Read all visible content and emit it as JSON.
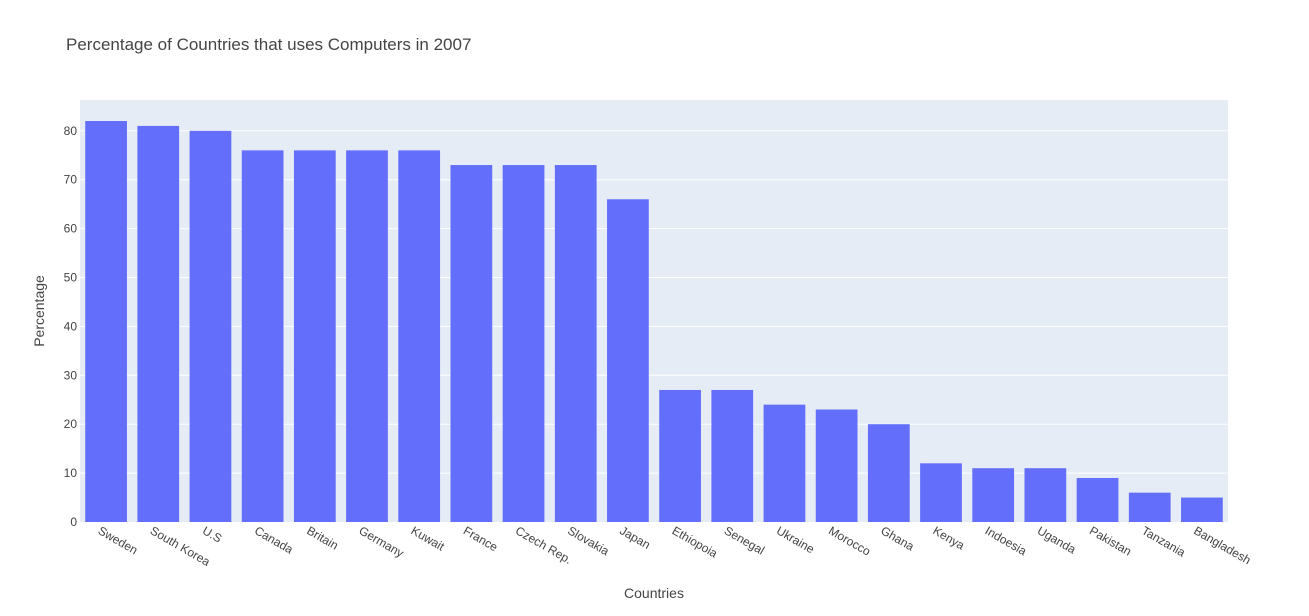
{
  "chart_data": {
    "type": "bar",
    "title": "Percentage of Countries that uses Computers in 2007",
    "xlabel": "Countries",
    "ylabel": "Percentage",
    "categories": [
      "Sweden",
      "South Korea",
      "U.S",
      "Canada",
      "Britain",
      "Germany",
      "Kuwait",
      "France",
      "Czech Rep.",
      "Slovakia",
      "Japan",
      "Ethiopoia",
      "Senegal",
      "Ukraine",
      "Morocco",
      "Ghana",
      "Kenya",
      "Indoesia",
      "Uganda",
      "Pakistan",
      "Tanzania",
      "Bangladesh"
    ],
    "values": [
      82,
      81,
      80,
      76,
      76,
      76,
      76,
      73,
      73,
      73,
      66,
      27,
      27,
      24,
      23,
      20,
      12,
      11,
      11,
      9,
      6,
      5
    ],
    "ylim": [
      0,
      86.3
    ],
    "yticks": [
      0,
      10,
      20,
      30,
      40,
      50,
      60,
      70,
      80
    ],
    "grid": true,
    "colors": {
      "bar": "#636efa",
      "plot_bg": "#e5ecf6",
      "grid": "#ffffff",
      "text": "#444444"
    }
  }
}
